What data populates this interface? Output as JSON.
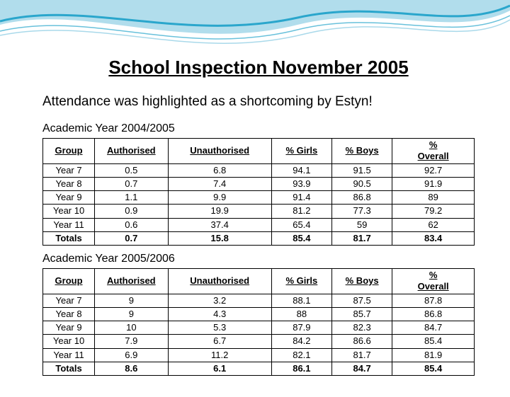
{
  "decor": {
    "wave_main": "#2aa6cc",
    "wave_light": "#a9d9ea",
    "wave_bg": "#ffffff"
  },
  "title": "School Inspection November 2005",
  "subtitle": "Attendance was highlighted as a shortcoming by Estyn!",
  "tables": {
    "t2004": {
      "caption": "Academic Year 2004/2005",
      "columns": [
        "Group",
        "Authorised",
        "Unauthorised",
        "% Girls",
        "% Boys",
        "% Overall"
      ],
      "rows": [
        [
          "Year 7",
          "0.5",
          "6.8",
          "94.1",
          "91.5",
          "92.7"
        ],
        [
          "Year 8",
          "0.7",
          "7.4",
          "93.9",
          "90.5",
          "91.9"
        ],
        [
          "Year 9",
          "1.1",
          "9.9",
          "91.4",
          "86.8",
          "89"
        ],
        [
          "Year 10",
          "0.9",
          "19.9",
          "81.2",
          "77.3",
          "79.2"
        ],
        [
          "Year 11",
          "0.6",
          "37.4",
          "65.4",
          "59",
          "62"
        ]
      ],
      "totals": [
        "Totals",
        "0.7",
        "15.8",
        "85.4",
        "81.7",
        "83.4"
      ]
    },
    "t2005": {
      "caption": "Academic Year 2005/2006",
      "columns": [
        "Group",
        "Authorised",
        "Unauthorised",
        "% Girls",
        "% Boys",
        "% Overall"
      ],
      "rows": [
        [
          "Year 7",
          "9",
          "3.2",
          "88.1",
          "87.5",
          "87.8"
        ],
        [
          "Year 8",
          "9",
          "4.3",
          "88",
          "85.7",
          "86.8"
        ],
        [
          "Year 9",
          "10",
          "5.3",
          "87.9",
          "82.3",
          "84.7"
        ],
        [
          "Year 10",
          "7.9",
          "6.7",
          "84.2",
          "86.6",
          "85.4"
        ],
        [
          "Year 11",
          "6.9",
          "11.2",
          "82.1",
          "81.7",
          "81.9"
        ]
      ],
      "totals": [
        "Totals",
        "8.6",
        "6.1",
        "86.1",
        "84.7",
        "85.4"
      ]
    }
  }
}
